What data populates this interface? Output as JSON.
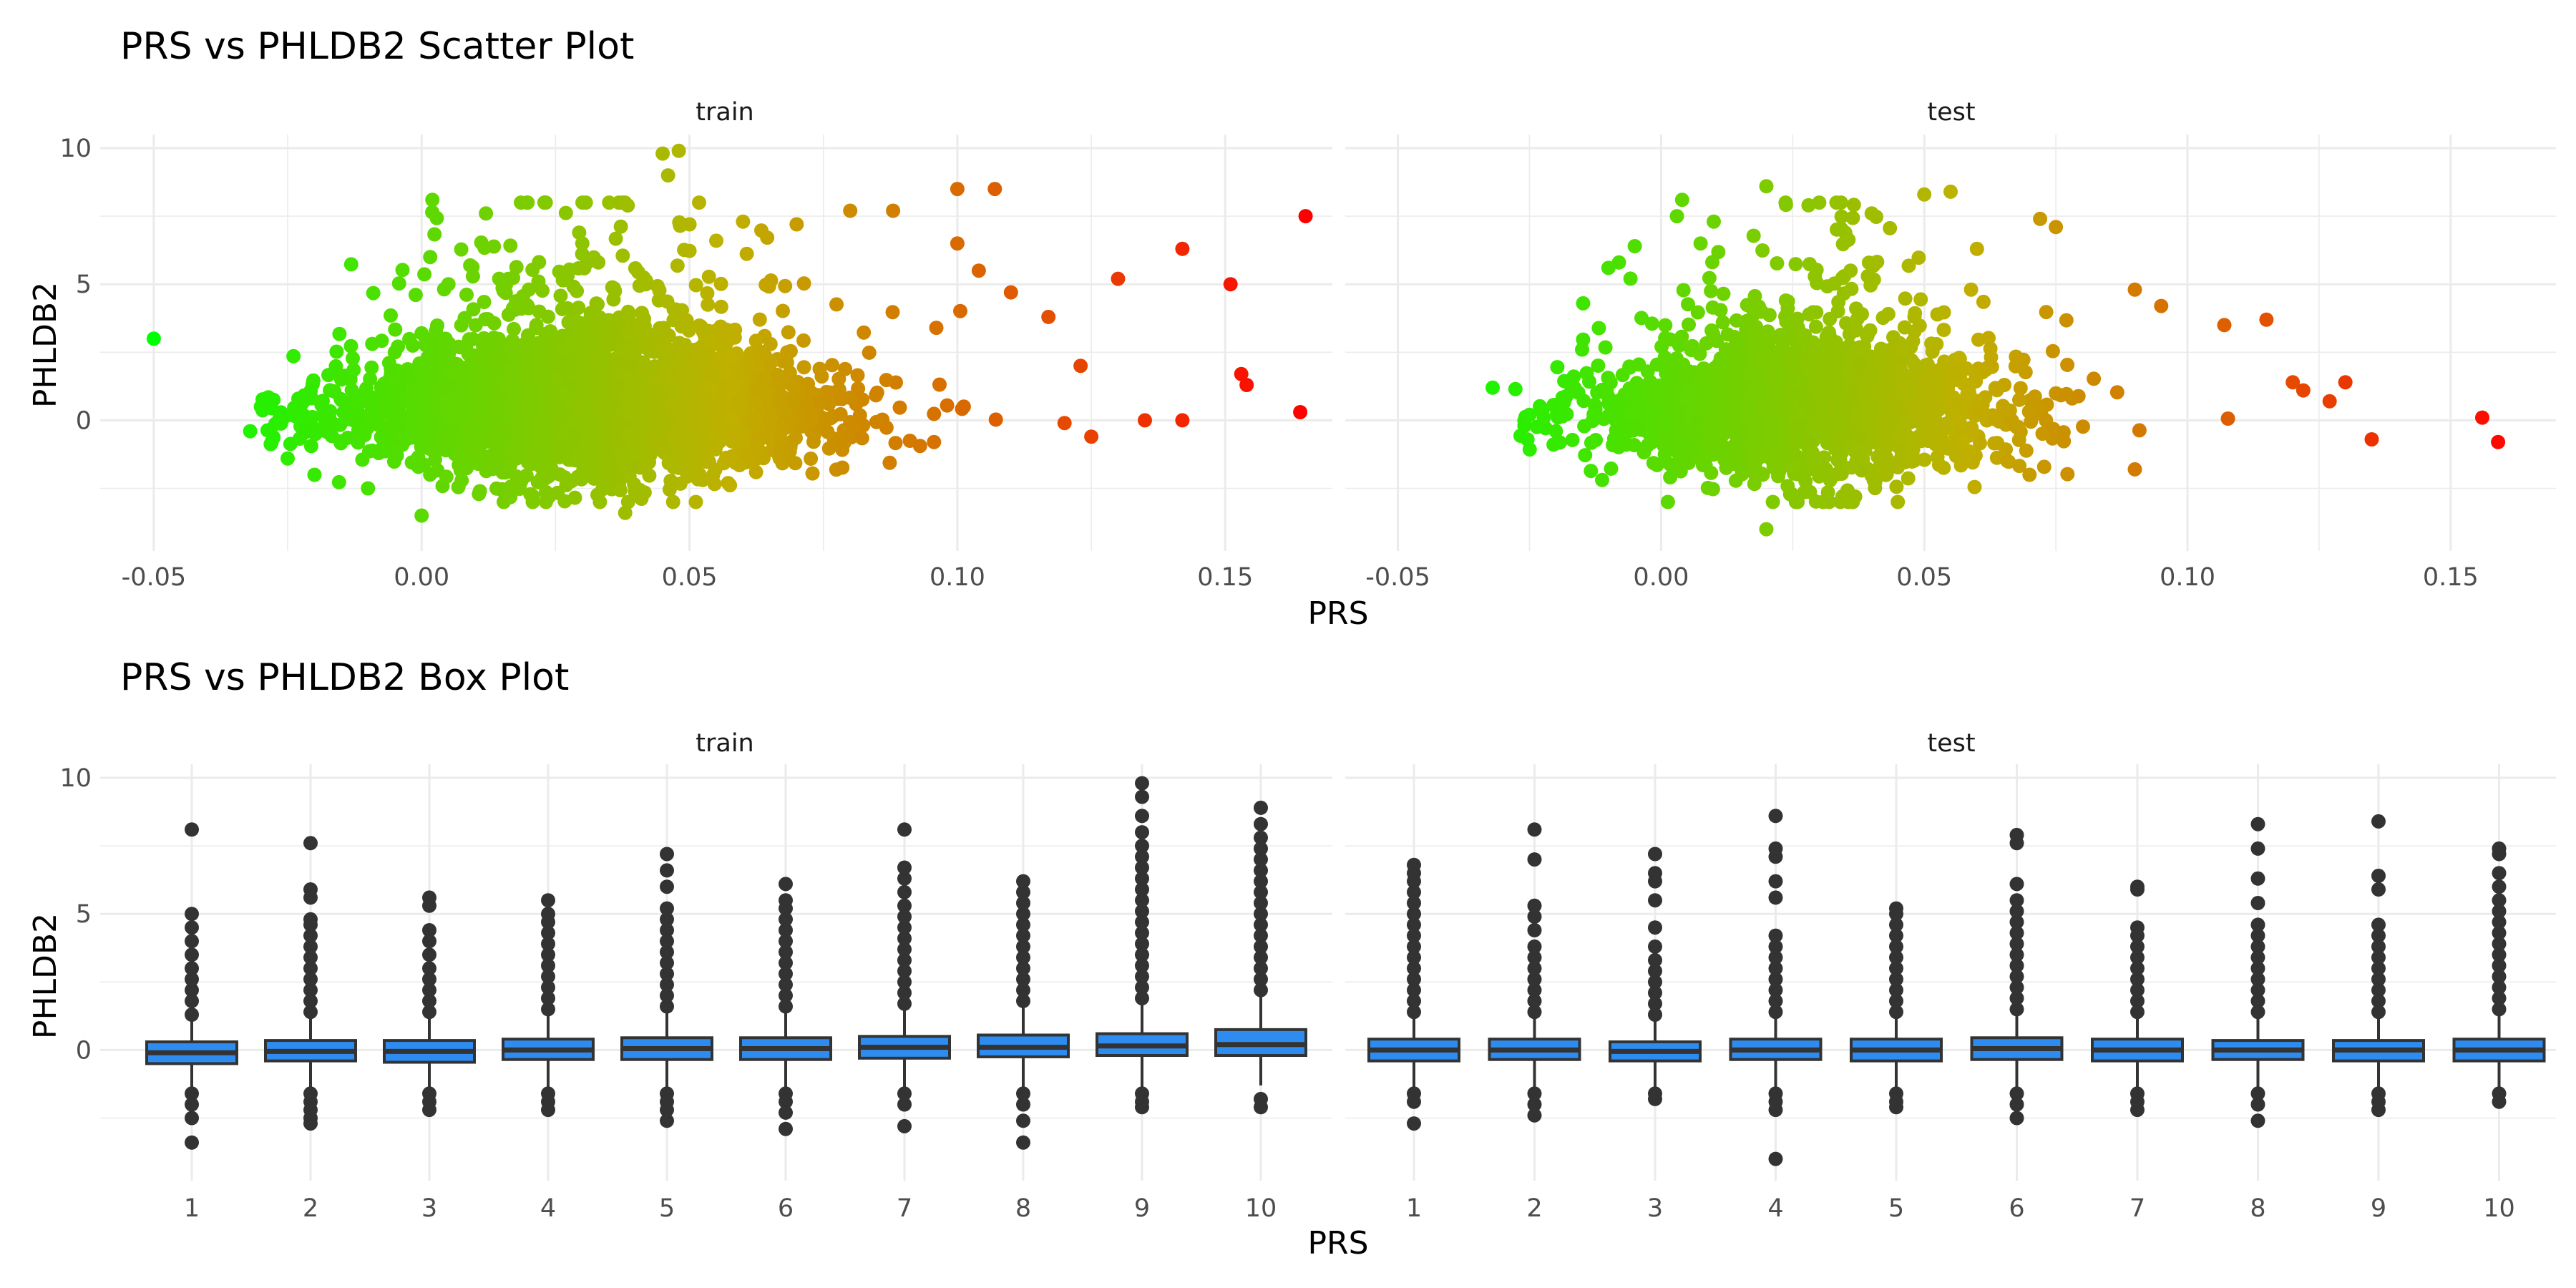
{
  "chart_data": [
    {
      "type": "scatter",
      "title": "PRS vs PHLDB2 Scatter Plot",
      "xlabel": "PRS",
      "ylabel": "PHLDB2",
      "facets": [
        "train",
        "test"
      ],
      "xlim": [
        -0.06,
        0.17
      ],
      "ylim": [
        -4.8,
        10.5
      ],
      "x_ticks": [
        -0.05,
        0.0,
        0.05,
        0.1,
        0.15
      ],
      "x_tick_labels": [
        "-0.05",
        "0.00",
        "0.05",
        "0.10",
        "0.15"
      ],
      "y_ticks": [
        0,
        5,
        10
      ],
      "y_tick_labels": [
        "0",
        "5",
        "10"
      ],
      "grid": true,
      "color_gradient": {
        "low": "#00ff00",
        "mid": "#c0b000",
        "high": "#ff0000"
      },
      "series": [
        {
          "facet": "train",
          "points": [
            [
              -0.05,
              3.0
            ],
            [
              -0.032,
              -0.4
            ],
            [
              -0.03,
              0.5
            ],
            [
              -0.028,
              -0.8
            ],
            [
              -0.025,
              -1.4
            ],
            [
              -0.022,
              0.7
            ],
            [
              -0.02,
              -2.0
            ],
            [
              -0.015,
              1.5
            ],
            [
              -0.01,
              -2.5
            ],
            [
              -0.005,
              2.5
            ],
            [
              0.0,
              3.2
            ],
            [
              0.005,
              5.0
            ],
            [
              0.002,
              8.1
            ],
            [
              0.012,
              7.6
            ],
            [
              0.02,
              4.8
            ],
            [
              0.03,
              6.5
            ],
            [
              0.035,
              8.0
            ],
            [
              0.038,
              -3.4
            ],
            [
              0.045,
              9.8
            ],
            [
              0.048,
              9.9
            ],
            [
              0.046,
              9.0
            ],
            [
              0.05,
              7.2
            ],
            [
              0.055,
              6.6
            ],
            [
              0.06,
              7.3
            ],
            [
              0.07,
              7.2
            ],
            [
              0.08,
              7.7
            ],
            [
              0.088,
              7.7
            ],
            [
              0.1,
              8.5
            ],
            [
              0.107,
              8.5
            ],
            [
              0.1,
              6.5
            ],
            [
              0.104,
              5.5
            ],
            [
              0.11,
              4.7
            ],
            [
              0.117,
              3.8
            ],
            [
              0.123,
              2.0
            ],
            [
              0.12,
              -0.1
            ],
            [
              0.125,
              -0.6
            ],
            [
              0.13,
              5.2
            ],
            [
              0.135,
              0.0
            ],
            [
              0.142,
              0.0
            ],
            [
              0.142,
              6.3
            ],
            [
              0.151,
              5.0
            ],
            [
              0.153,
              1.7
            ],
            [
              0.154,
              1.3
            ],
            [
              0.165,
              7.5
            ],
            [
              0.164,
              0.3
            ],
            [
              0.0,
              -3.5
            ],
            [
              -0.008,
              -1.2
            ]
          ]
        },
        {
          "facet": "test",
          "points": [
            [
              -0.032,
              1.2
            ],
            [
              -0.025,
              0.2
            ],
            [
              -0.02,
              -0.4
            ],
            [
              -0.015,
              2.6
            ],
            [
              -0.008,
              5.8
            ],
            [
              -0.01,
              5.6
            ],
            [
              -0.005,
              6.4
            ],
            [
              0.003,
              7.5
            ],
            [
              0.004,
              8.1
            ],
            [
              0.01,
              7.3
            ],
            [
              0.02,
              8.6
            ],
            [
              0.028,
              7.9
            ],
            [
              0.036,
              5.5
            ],
            [
              0.04,
              7.6
            ],
            [
              0.05,
              8.3
            ],
            [
              0.055,
              8.4
            ],
            [
              0.06,
              6.3
            ],
            [
              0.072,
              7.4
            ],
            [
              0.075,
              7.1
            ],
            [
              0.09,
              4.8
            ],
            [
              0.095,
              4.2
            ],
            [
              0.107,
              3.5
            ],
            [
              0.115,
              3.7
            ],
            [
              0.12,
              1.4
            ],
            [
              0.122,
              1.1
            ],
            [
              0.127,
              0.7
            ],
            [
              0.13,
              1.4
            ],
            [
              0.135,
              -0.7
            ],
            [
              0.156,
              0.1
            ],
            [
              0.159,
              -0.8
            ],
            [
              0.02,
              -4.0
            ],
            [
              0.07,
              -2.0
            ],
            [
              0.09,
              -1.8
            ]
          ]
        }
      ]
    },
    {
      "type": "box",
      "title": "PRS vs PHLDB2 Box Plot",
      "xlabel": "PRS",
      "ylabel": "PHLDB2",
      "facets": [
        "train",
        "test"
      ],
      "categories": [
        "1",
        "2",
        "3",
        "4",
        "5",
        "6",
        "7",
        "8",
        "9",
        "10"
      ],
      "ylim": [
        -4.8,
        10.5
      ],
      "y_ticks": [
        0,
        5,
        10
      ],
      "y_tick_labels": [
        "0",
        "5",
        "10"
      ],
      "grid": true,
      "fill_color": "#2e8bf0",
      "series": [
        {
          "facet": "train",
          "boxes": [
            {
              "q1": -0.5,
              "median": -0.1,
              "q3": 0.3,
              "whisker_low": -1.5,
              "whisker_high": 1.2,
              "outliers_high": [
                1.3,
                1.8,
                2.2,
                2.6,
                3.0,
                3.5,
                4.0,
                4.5,
                5.0,
                8.1
              ],
              "outliers_low": [
                -1.6,
                -2.0,
                -2.5,
                -3.4
              ]
            },
            {
              "q1": -0.4,
              "median": -0.05,
              "q3": 0.35,
              "whisker_low": -1.5,
              "whisker_high": 1.3,
              "outliers_high": [
                1.4,
                1.8,
                2.2,
                2.6,
                3.0,
                3.4,
                3.8,
                4.2,
                4.6,
                4.8,
                5.6,
                5.9,
                7.6
              ],
              "outliers_low": [
                -1.6,
                -1.9,
                -2.2,
                -2.5,
                -2.7
              ]
            },
            {
              "q1": -0.45,
              "median": -0.05,
              "q3": 0.35,
              "whisker_low": -1.5,
              "whisker_high": 1.3,
              "outliers_high": [
                1.4,
                1.8,
                2.2,
                2.6,
                3.0,
                3.5,
                4.0,
                4.4,
                5.3,
                5.6
              ],
              "outliers_low": [
                -1.6,
                -1.9,
                -2.2
              ]
            },
            {
              "q1": -0.35,
              "median": 0.0,
              "q3": 0.4,
              "whisker_low": -1.5,
              "whisker_high": 1.4,
              "outliers_high": [
                1.5,
                1.9,
                2.3,
                2.7,
                3.1,
                3.5,
                3.9,
                4.3,
                4.7,
                5.0,
                5.5
              ],
              "outliers_low": [
                -1.6,
                -1.9,
                -2.2
              ]
            },
            {
              "q1": -0.35,
              "median": 0.05,
              "q3": 0.45,
              "whisker_low": -1.5,
              "whisker_high": 1.5,
              "outliers_high": [
                1.6,
                2.0,
                2.4,
                2.8,
                3.2,
                3.6,
                4.0,
                4.4,
                4.8,
                5.2,
                6.0,
                6.6,
                7.2
              ],
              "outliers_low": [
                -1.6,
                -1.9,
                -2.2,
                -2.6
              ]
            },
            {
              "q1": -0.35,
              "median": 0.05,
              "q3": 0.45,
              "whisker_low": -1.5,
              "whisker_high": 1.5,
              "outliers_high": [
                1.6,
                2.0,
                2.4,
                2.8,
                3.2,
                3.6,
                4.0,
                4.4,
                4.8,
                5.2,
                5.5,
                6.1
              ],
              "outliers_low": [
                -1.6,
                -1.9,
                -2.3,
                -2.9
              ]
            },
            {
              "q1": -0.3,
              "median": 0.1,
              "q3": 0.5,
              "whisker_low": -1.5,
              "whisker_high": 1.6,
              "outliers_high": [
                1.7,
                2.1,
                2.5,
                2.9,
                3.3,
                3.7,
                4.1,
                4.5,
                4.9,
                5.3,
                5.8,
                6.3,
                6.7,
                8.1
              ],
              "outliers_low": [
                -1.6,
                -2.0,
                -2.8
              ]
            },
            {
              "q1": -0.25,
              "median": 0.1,
              "q3": 0.55,
              "whisker_low": -1.5,
              "whisker_high": 1.7,
              "outliers_high": [
                1.8,
                2.2,
                2.6,
                3.0,
                3.4,
                3.8,
                4.2,
                4.6,
                5.0,
                5.4,
                5.8,
                6.2
              ],
              "outliers_low": [
                -1.6,
                -2.0,
                -2.6,
                -3.4
              ]
            },
            {
              "q1": -0.2,
              "median": 0.15,
              "q3": 0.6,
              "whisker_low": -1.4,
              "whisker_high": 1.8,
              "outliers_high": [
                1.9,
                2.3,
                2.7,
                3.1,
                3.5,
                3.9,
                4.3,
                4.7,
                5.1,
                5.5,
                5.9,
                6.3,
                6.7,
                7.1,
                7.5,
                8.0,
                8.6,
                9.3,
                9.8
              ],
              "outliers_low": [
                -1.6,
                -1.9,
                -2.1
              ]
            },
            {
              "q1": -0.2,
              "median": 0.2,
              "q3": 0.75,
              "whisker_low": -1.3,
              "whisker_high": 2.1,
              "outliers_high": [
                2.2,
                2.6,
                3.0,
                3.4,
                3.8,
                4.2,
                4.6,
                5.0,
                5.4,
                5.8,
                6.2,
                6.6,
                7.0,
                7.4,
                7.8,
                8.3,
                8.9
              ],
              "outliers_low": [
                -1.8,
                -2.1
              ]
            }
          ]
        },
        {
          "facet": "test",
          "boxes": [
            {
              "q1": -0.4,
              "median": 0.0,
              "q3": 0.4,
              "whisker_low": -1.5,
              "whisker_high": 1.3,
              "outliers_high": [
                1.4,
                1.8,
                2.2,
                2.6,
                3.0,
                3.4,
                3.8,
                4.2,
                4.6,
                5.0,
                5.4,
                5.8,
                6.2,
                6.5,
                6.8
              ],
              "outliers_low": [
                -1.6,
                -1.9,
                -2.7
              ]
            },
            {
              "q1": -0.35,
              "median": 0.0,
              "q3": 0.4,
              "whisker_low": -1.5,
              "whisker_high": 1.3,
              "outliers_high": [
                1.4,
                1.8,
                2.2,
                2.6,
                3.0,
                3.4,
                3.8,
                4.4,
                4.9,
                5.3,
                7.0,
                8.1
              ],
              "outliers_low": [
                -1.6,
                -2.0,
                -2.4
              ]
            },
            {
              "q1": -0.4,
              "median": -0.05,
              "q3": 0.3,
              "whisker_low": -1.5,
              "whisker_high": 1.2,
              "outliers_high": [
                1.3,
                1.7,
                2.1,
                2.5,
                2.9,
                3.3,
                3.8,
                4.5,
                5.5,
                6.2,
                6.5,
                7.2
              ],
              "outliers_low": [
                -1.6,
                -1.8
              ]
            },
            {
              "q1": -0.35,
              "median": 0.0,
              "q3": 0.4,
              "whisker_low": -1.5,
              "whisker_high": 1.3,
              "outliers_high": [
                1.4,
                1.8,
                2.2,
                2.6,
                3.0,
                3.4,
                3.8,
                4.2,
                5.6,
                6.2,
                7.1,
                7.4,
                8.6
              ],
              "outliers_low": [
                -1.6,
                -1.9,
                -2.2,
                -4.0
              ]
            },
            {
              "q1": -0.4,
              "median": 0.0,
              "q3": 0.4,
              "whisker_low": -1.5,
              "whisker_high": 1.3,
              "outliers_high": [
                1.4,
                1.8,
                2.2,
                2.6,
                3.0,
                3.4,
                3.8,
                4.2,
                4.6,
                5.0,
                5.2
              ],
              "outliers_low": [
                -1.6,
                -1.9,
                -2.1
              ]
            },
            {
              "q1": -0.35,
              "median": 0.05,
              "q3": 0.45,
              "whisker_low": -1.5,
              "whisker_high": 1.4,
              "outliers_high": [
                1.5,
                1.9,
                2.3,
                2.7,
                3.1,
                3.5,
                3.9,
                4.3,
                4.7,
                5.1,
                5.5,
                6.1,
                7.6,
                7.9
              ],
              "outliers_low": [
                -1.6,
                -2.0,
                -2.5
              ]
            },
            {
              "q1": -0.4,
              "median": 0.0,
              "q3": 0.4,
              "whisker_low": -1.5,
              "whisker_high": 1.3,
              "outliers_high": [
                1.4,
                1.8,
                2.2,
                2.6,
                3.0,
                3.4,
                3.8,
                4.2,
                4.5,
                5.9,
                6.0
              ],
              "outliers_low": [
                -1.6,
                -1.9,
                -2.2
              ]
            },
            {
              "q1": -0.35,
              "median": 0.0,
              "q3": 0.35,
              "whisker_low": -1.5,
              "whisker_high": 1.3,
              "outliers_high": [
                1.4,
                1.8,
                2.2,
                2.6,
                3.0,
                3.4,
                3.8,
                4.2,
                4.6,
                5.4,
                6.3,
                7.4,
                8.3
              ],
              "outliers_low": [
                -1.6,
                -2.0,
                -2.6
              ]
            },
            {
              "q1": -0.4,
              "median": 0.0,
              "q3": 0.35,
              "whisker_low": -1.5,
              "whisker_high": 1.3,
              "outliers_high": [
                1.4,
                1.8,
                2.2,
                2.6,
                3.0,
                3.4,
                3.8,
                4.2,
                4.6,
                5.9,
                6.4,
                8.4
              ],
              "outliers_low": [
                -1.6,
                -1.9,
                -2.2
              ]
            },
            {
              "q1": -0.4,
              "median": 0.0,
              "q3": 0.4,
              "whisker_low": -1.5,
              "whisker_high": 1.4,
              "outliers_high": [
                1.5,
                1.9,
                2.3,
                2.7,
                3.1,
                3.5,
                3.9,
                4.3,
                4.7,
                5.1,
                5.5,
                6.0,
                6.5,
                7.2,
                7.4
              ],
              "outliers_low": [
                -1.6,
                -1.9
              ]
            }
          ]
        }
      ]
    }
  ]
}
